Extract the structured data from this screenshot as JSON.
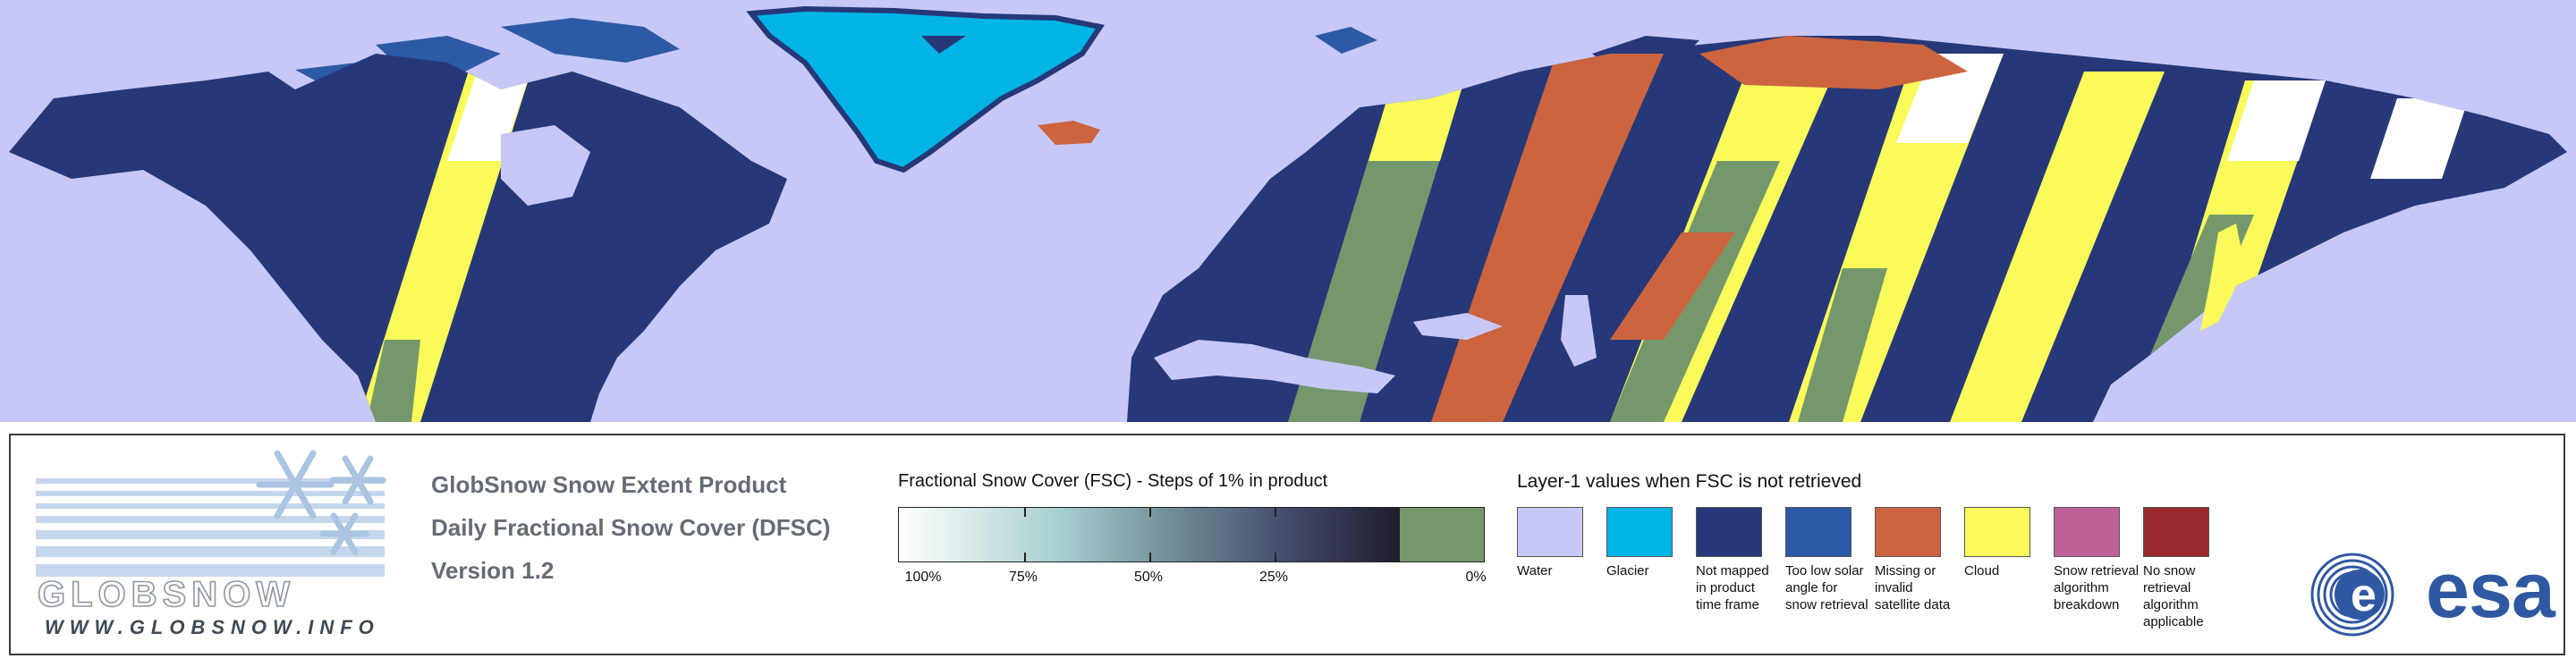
{
  "product": {
    "title": "GlobSnow Snow Extent Product",
    "subtitle": "Daily Fractional Snow Cover (DFSC)",
    "version": "Version 1.2"
  },
  "logo": {
    "name": "GLOBSNOW",
    "url": "WWW.GLOBSNOW.INFO"
  },
  "fsc_legend": {
    "title": "Fractional Snow Cover (FSC) - Steps of 1% in product",
    "labels": [
      "100%",
      "75%",
      "50%",
      "25%",
      "0%"
    ],
    "label_values": [
      100,
      75,
      50,
      25,
      0
    ],
    "gradient_start": "#ffffff",
    "gradient_end": "#1d1d2c",
    "no_snow_color": "#74986c"
  },
  "layer1_legend": {
    "title": "Layer-1 values when FSC is not retrieved",
    "items": [
      {
        "label": "Water",
        "color": "#c8c8f8"
      },
      {
        "label": "Glacier",
        "color": "#00b4e6"
      },
      {
        "label": "Not mapped in product time frame",
        "color": "#263878"
      },
      {
        "label": "Too low solar angle for snow retrieval",
        "color": "#2c5aa6"
      },
      {
        "label": "Missing or invalid satellite data",
        "color": "#cc6440"
      },
      {
        "label": "Cloud",
        "color": "#fafa5a"
      },
      {
        "label": "Snow retrieval algorithm breakdown",
        "color": "#c06098"
      },
      {
        "label": "No snow retrieval algorithm applicable",
        "color": "#9a2a30"
      }
    ]
  },
  "agency_logo": "esa",
  "map_colors": {
    "water": "#c8c8f8",
    "land": "#263878",
    "glacier": "#00b4e6",
    "cloud": "#fafa5a",
    "snow": "#ffffff",
    "no_snow": "#74986c",
    "missing": "#cc6440",
    "low_sun": "#2c5aa6"
  }
}
